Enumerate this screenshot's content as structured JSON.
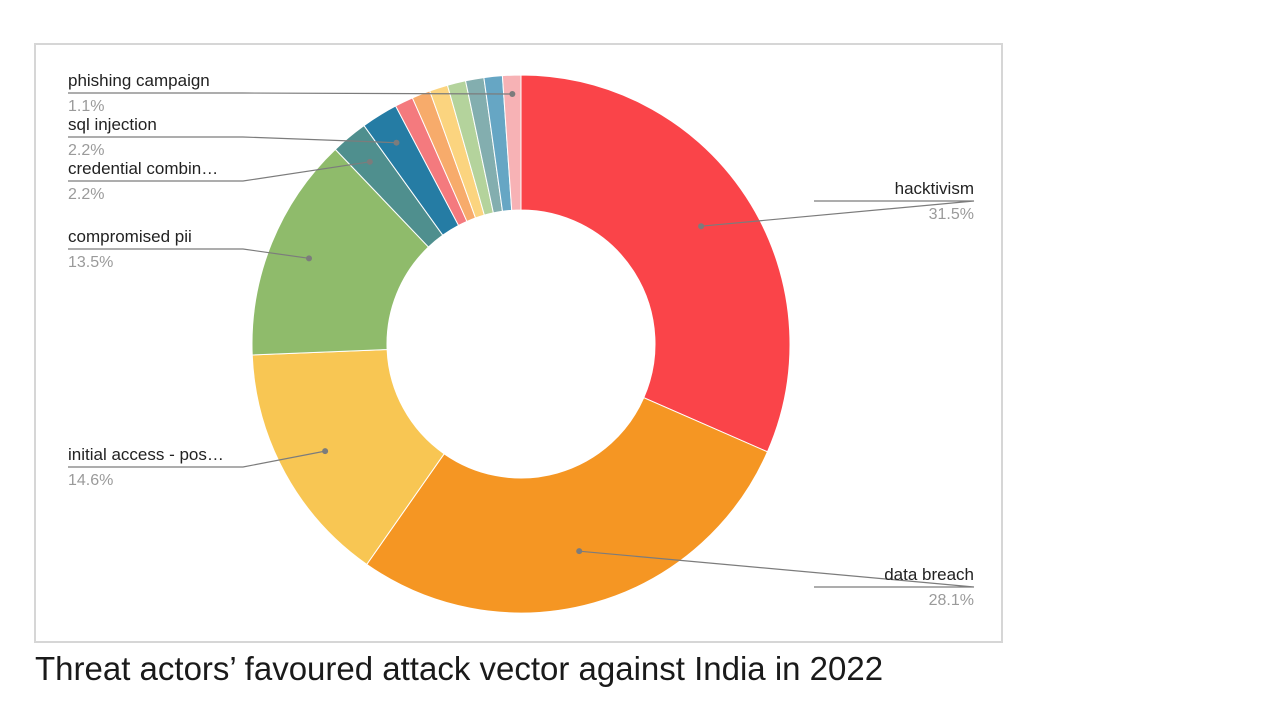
{
  "caption": "Threat actors’ favoured attack vector against India in 2022",
  "chart_data": {
    "type": "pie",
    "variant": "donut",
    "legend": "none",
    "labels_shown": [
      "hacktivism",
      "data breach",
      "initial access - pos…",
      "compromised pii",
      "credential combin…",
      "sql injection",
      "phishing campaign"
    ],
    "slices": [
      {
        "label": "hacktivism",
        "value": 31.5,
        "display": "31.5%",
        "color": "#fa4449"
      },
      {
        "label": "data breach",
        "value": 28.1,
        "display": "28.1%",
        "color": "#f59623"
      },
      {
        "label": "initial access - pos…",
        "value": 14.6,
        "display": "14.6%",
        "color": "#f8c653"
      },
      {
        "label": "compromised pii",
        "value": 13.5,
        "display": "13.5%",
        "color": "#8fbb6b"
      },
      {
        "label": "credential combin…",
        "value": 2.2,
        "display": "2.2%",
        "color": "#4f8f8e"
      },
      {
        "label": "sql injection",
        "value": 2.2,
        "display": "2.2%",
        "color": "#257ca4"
      },
      {
        "label": "",
        "value": 1.1,
        "color": "#f47a7e"
      },
      {
        "label": "",
        "value": 1.1,
        "color": "#f7ab6b"
      },
      {
        "label": "",
        "value": 1.1,
        "color": "#fbd47f"
      },
      {
        "label": "",
        "value": 1.1,
        "color": "#b4d39c"
      },
      {
        "label": "",
        "value": 1.1,
        "color": "#83aeaf"
      },
      {
        "label": "",
        "value": 1.1,
        "color": "#66a6c4"
      },
      {
        "label": "phishing campaign",
        "value": 1.1,
        "display": "1.1%",
        "color": "#f7b2b5"
      }
    ]
  }
}
